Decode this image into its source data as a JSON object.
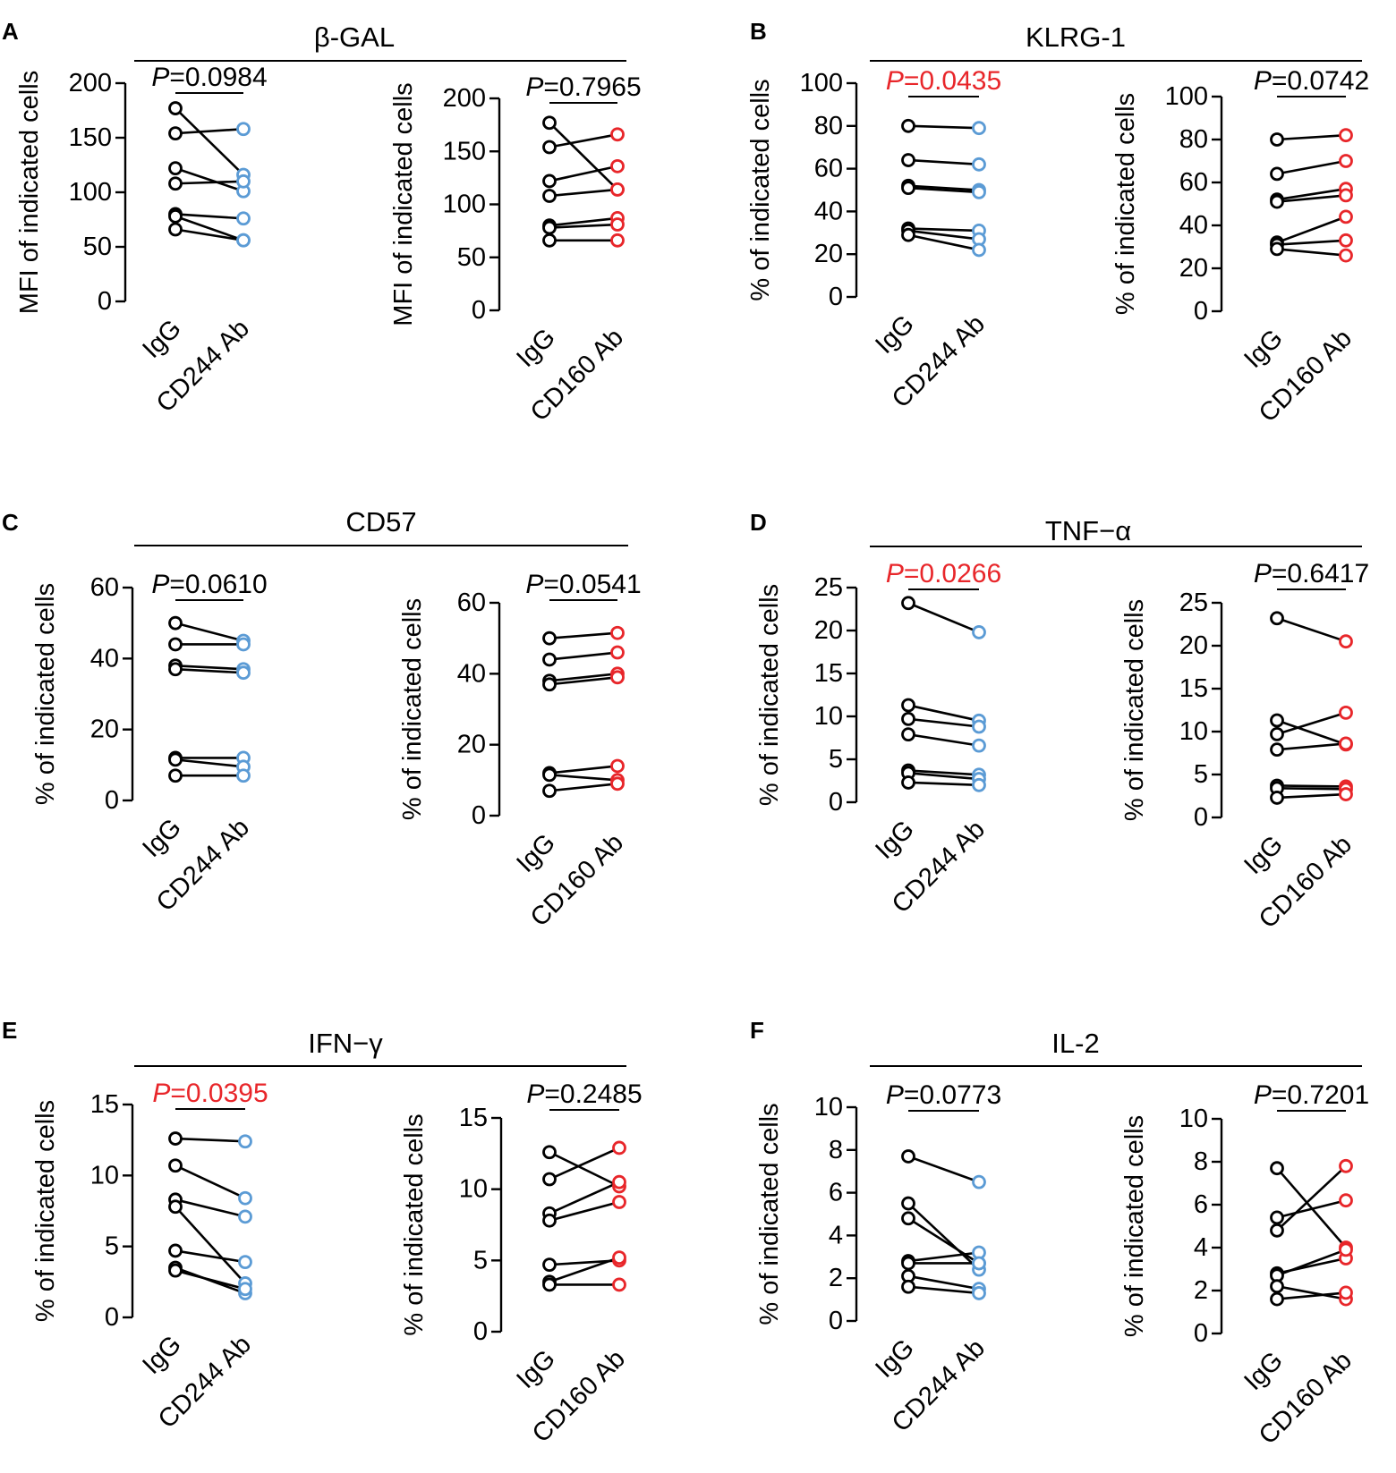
{
  "figure": {
    "colors": {
      "axis": "#000000",
      "igg": "#000000",
      "cd244": "#5b9bd5",
      "cd160": "#e8262a",
      "significant": "#e8262a",
      "normal": "#000000"
    },
    "p_prefix": "P"
  },
  "chart_data": [
    {
      "panel_letter": "A",
      "group_title": "β-GAL",
      "charts": [
        {
          "type": "paired-dot",
          "ylabel": "MFI of indicated cells",
          "ylim": [
            0,
            200
          ],
          "yticks": [
            0,
            50,
            100,
            150,
            200
          ],
          "categories": [
            "IgG",
            "CD244 Ab"
          ],
          "treatment_color": "cd244",
          "p_value": "=0.0984",
          "significant": false,
          "pairs": [
            [
              177,
              116
            ],
            [
              154,
              158
            ],
            [
              122,
              101
            ],
            [
              108,
              110
            ],
            [
              80,
              76
            ],
            [
              78,
              56
            ],
            [
              66,
              56
            ]
          ]
        },
        {
          "type": "paired-dot",
          "ylabel": "MFI of indicated cells",
          "ylim": [
            0,
            200
          ],
          "yticks": [
            0,
            50,
            100,
            150,
            200
          ],
          "categories": [
            "IgG",
            "CD160 Ab"
          ],
          "treatment_color": "cd160",
          "p_value": "=0.7965",
          "significant": false,
          "pairs": [
            [
              177,
              114
            ],
            [
              154,
              166
            ],
            [
              122,
              136
            ],
            [
              108,
              114
            ],
            [
              80,
              87
            ],
            [
              78,
              81
            ],
            [
              66,
              66
            ]
          ]
        }
      ]
    },
    {
      "panel_letter": "B",
      "group_title": "KLRG-1",
      "charts": [
        {
          "type": "paired-dot",
          "ylabel": "% of indicated cells",
          "ylim": [
            0,
            100
          ],
          "yticks": [
            0,
            20,
            40,
            60,
            80,
            100
          ],
          "categories": [
            "IgG",
            "CD244 Ab"
          ],
          "treatment_color": "cd244",
          "p_value": "=0.0435",
          "significant": true,
          "pairs": [
            [
              80,
              79
            ],
            [
              64,
              62
            ],
            [
              52,
              50
            ],
            [
              51,
              49
            ],
            [
              32,
              31
            ],
            [
              31,
              27
            ],
            [
              29,
              22
            ]
          ]
        },
        {
          "type": "paired-dot",
          "ylabel": "% of indicated cells",
          "ylim": [
            0,
            100
          ],
          "yticks": [
            0,
            20,
            40,
            60,
            80,
            100
          ],
          "categories": [
            "IgG",
            "CD160 Ab"
          ],
          "treatment_color": "cd160",
          "p_value": "=0.0742",
          "significant": false,
          "pairs": [
            [
              80,
              82
            ],
            [
              64,
              70
            ],
            [
              52,
              57
            ],
            [
              51,
              54
            ],
            [
              32,
              44
            ],
            [
              31,
              33
            ],
            [
              29,
              26
            ]
          ]
        }
      ]
    },
    {
      "panel_letter": "C",
      "group_title": "CD57",
      "charts": [
        {
          "type": "paired-dot",
          "ylabel": "% of indicated cells",
          "ylim": [
            0,
            60
          ],
          "yticks": [
            0,
            20,
            40,
            60
          ],
          "categories": [
            "IgG",
            "CD244 Ab"
          ],
          "treatment_color": "cd244",
          "p_value": "=0.0610",
          "significant": false,
          "pairs": [
            [
              50,
              45
            ],
            [
              44,
              44
            ],
            [
              38,
              37
            ],
            [
              37,
              36
            ],
            [
              12,
              12
            ],
            [
              11.5,
              9.5
            ],
            [
              7,
              7
            ]
          ]
        },
        {
          "type": "paired-dot",
          "ylabel": "% of indicated cells",
          "ylim": [
            0,
            60
          ],
          "yticks": [
            0,
            20,
            40,
            60
          ],
          "categories": [
            "IgG",
            "CD160 Ab"
          ],
          "treatment_color": "cd160",
          "p_value": "=0.0541",
          "significant": false,
          "pairs": [
            [
              50,
              51.5
            ],
            [
              44,
              46
            ],
            [
              38,
              40
            ],
            [
              37,
              39
            ],
            [
              12,
              14
            ],
            [
              11.5,
              10
            ],
            [
              7,
              9
            ]
          ]
        }
      ]
    },
    {
      "panel_letter": "D",
      "group_title": "TNF−α",
      "charts": [
        {
          "type": "paired-dot",
          "ylabel": "% of indicated cells",
          "ylim": [
            0,
            25
          ],
          "yticks": [
            0,
            5,
            10,
            15,
            20,
            25
          ],
          "categories": [
            "IgG",
            "CD244 Ab"
          ],
          "treatment_color": "cd244",
          "p_value": "=0.0266",
          "significant": true,
          "pairs": [
            [
              23.2,
              19.8
            ],
            [
              11.3,
              9.5
            ],
            [
              9.7,
              8.8
            ],
            [
              7.9,
              6.6
            ],
            [
              3.7,
              3.2
            ],
            [
              3.4,
              2.7
            ],
            [
              2.3,
              2.0
            ]
          ]
        },
        {
          "type": "paired-dot",
          "ylabel": "% of indicated cells",
          "ylim": [
            0,
            25
          ],
          "yticks": [
            0,
            5,
            10,
            15,
            20,
            25
          ],
          "categories": [
            "IgG",
            "CD160 Ab"
          ],
          "treatment_color": "cd160",
          "p_value": "=0.6417",
          "significant": false,
          "pairs": [
            [
              23.2,
              20.5
            ],
            [
              11.3,
              8.5
            ],
            [
              9.7,
              12.2
            ],
            [
              7.9,
              8.6
            ],
            [
              3.7,
              3.6
            ],
            [
              3.4,
              3.3
            ],
            [
              2.3,
              2.7
            ]
          ]
        }
      ]
    },
    {
      "panel_letter": "E",
      "group_title": "IFN−γ",
      "charts": [
        {
          "type": "paired-dot",
          "ylabel": "% of indicated cells",
          "ylim": [
            0,
            15
          ],
          "yticks": [
            0,
            5,
            10,
            15
          ],
          "categories": [
            "IgG",
            "CD244 Ab"
          ],
          "treatment_color": "cd244",
          "p_value": "=0.0395",
          "significant": true,
          "pairs": [
            [
              12.6,
              12.4
            ],
            [
              10.7,
              8.4
            ],
            [
              8.3,
              7.1
            ],
            [
              7.8,
              2.4
            ],
            [
              4.7,
              3.9
            ],
            [
              3.5,
              1.7
            ],
            [
              3.3,
              2.0
            ]
          ]
        },
        {
          "type": "paired-dot",
          "ylabel": "% of indicated cells",
          "ylim": [
            0,
            15
          ],
          "yticks": [
            0,
            5,
            10,
            15
          ],
          "categories": [
            "IgG",
            "CD160 Ab"
          ],
          "treatment_color": "cd160",
          "p_value": "=0.2485",
          "significant": false,
          "pairs": [
            [
              12.6,
              10.2
            ],
            [
              10.7,
              12.9
            ],
            [
              8.3,
              10.5
            ],
            [
              7.8,
              9.1
            ],
            [
              4.7,
              5.0
            ],
            [
              3.5,
              5.2
            ],
            [
              3.3,
              3.3
            ]
          ]
        }
      ]
    },
    {
      "panel_letter": "F",
      "group_title": "IL-2",
      "charts": [
        {
          "type": "paired-dot",
          "ylabel": "% of indicated cells",
          "ylim": [
            0,
            10
          ],
          "yticks": [
            0,
            2,
            4,
            6,
            8,
            10
          ],
          "categories": [
            "IgG",
            "CD244 Ab"
          ],
          "treatment_color": "cd244",
          "p_value": "=0.0773",
          "significant": false,
          "pairs": [
            [
              7.7,
              6.5
            ],
            [
              5.5,
              2.4
            ],
            [
              4.8,
              2.7
            ],
            [
              2.8,
              3.2
            ],
            [
              2.7,
              2.7
            ],
            [
              2.1,
              1.5
            ],
            [
              1.6,
              1.3
            ]
          ]
        },
        {
          "type": "paired-dot",
          "ylabel": "% of indicated cells",
          "ylim": [
            0,
            10
          ],
          "yticks": [
            0,
            2,
            4,
            6,
            8,
            10
          ],
          "categories": [
            "IgG",
            "CD160 Ab"
          ],
          "treatment_color": "cd160",
          "p_value": "=0.7201",
          "significant": false,
          "pairs": [
            [
              7.7,
              4.0
            ],
            [
              5.4,
              6.2
            ],
            [
              4.8,
              7.8
            ],
            [
              2.8,
              3.5
            ],
            [
              2.7,
              3.9
            ],
            [
              2.2,
              1.6
            ],
            [
              1.6,
              1.9
            ]
          ]
        }
      ]
    }
  ]
}
